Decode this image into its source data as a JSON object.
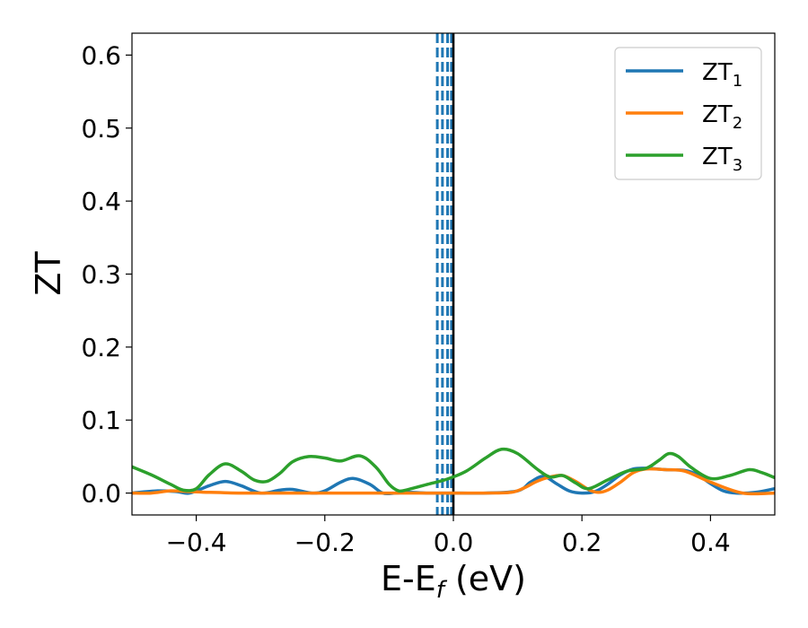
{
  "chart_data": {
    "type": "line",
    "xlabel": "E-E",
    "xlabel_sub": "f",
    "xlabel_unit": " (eV)",
    "ylabel": "ZT",
    "xlim": [
      -0.5,
      0.5
    ],
    "ylim": [
      -0.03,
      0.63
    ],
    "xticks": [
      -0.4,
      -0.2,
      0.0,
      0.2,
      0.4
    ],
    "xtick_labels": [
      "−0.4",
      "−0.2",
      "0.0",
      "0.2",
      "0.4"
    ],
    "yticks": [
      0.0,
      0.1,
      0.2,
      0.3,
      0.4,
      0.5,
      0.6
    ],
    "ytick_labels": [
      "0.0",
      "0.1",
      "0.2",
      "0.3",
      "0.4",
      "0.5",
      "0.6"
    ],
    "grid": false,
    "legend_position": "top-right",
    "vertical_lines": [
      {
        "x": -0.025,
        "style": "dashed",
        "color": "#1f77b4"
      },
      {
        "x": -0.017,
        "style": "dashed",
        "color": "#1f77b4"
      },
      {
        "x": -0.009,
        "style": "dashed",
        "color": "#1f77b4"
      },
      {
        "x": -0.003,
        "style": "dashed",
        "color": "#1f77b4"
      },
      {
        "x": 0.0,
        "style": "solid",
        "color": "#000000"
      }
    ],
    "series": [
      {
        "name": "ZT",
        "name_sub": "1",
        "color": "#1f77b4",
        "x": [
          -0.5,
          -0.46,
          -0.43,
          -0.41,
          -0.38,
          -0.355,
          -0.33,
          -0.3,
          -0.27,
          -0.25,
          -0.22,
          -0.2,
          -0.175,
          -0.155,
          -0.13,
          -0.11,
          -0.09,
          -0.07,
          -0.04,
          -0.02,
          0.0,
          0.05,
          0.1,
          0.12,
          0.14,
          0.16,
          0.18,
          0.2,
          0.22,
          0.24,
          0.26,
          0.28,
          0.3,
          0.33,
          0.36,
          0.38,
          0.4,
          0.42,
          0.44,
          0.47,
          0.5
        ],
        "y": [
          0.0,
          0.003,
          0.002,
          0.0,
          0.01,
          0.016,
          0.01,
          0.0,
          0.004,
          0.005,
          0.0,
          0.003,
          0.015,
          0.02,
          0.012,
          0.0,
          0.0,
          0.001,
          0.0,
          0.0,
          0.0,
          0.0,
          0.003,
          0.015,
          0.023,
          0.013,
          0.003,
          0.0,
          0.002,
          0.012,
          0.025,
          0.033,
          0.034,
          0.032,
          0.031,
          0.025,
          0.013,
          0.003,
          0.0,
          0.001,
          0.006
        ]
      },
      {
        "name": "ZT",
        "name_sub": "2",
        "color": "#ff7f0e",
        "x": [
          -0.5,
          -0.47,
          -0.44,
          -0.41,
          -0.38,
          -0.33,
          -0.28,
          -0.23,
          -0.18,
          -0.13,
          -0.08,
          -0.04,
          -0.02,
          0.0,
          0.05,
          0.09,
          0.11,
          0.13,
          0.15,
          0.17,
          0.19,
          0.21,
          0.225,
          0.24,
          0.26,
          0.28,
          0.3,
          0.33,
          0.36,
          0.4,
          0.45,
          0.5
        ],
        "y": [
          0.0,
          0.0,
          0.003,
          0.002,
          0.001,
          0.0,
          0.0,
          0.0,
          0.0,
          0.0,
          0.0,
          0.0,
          0.0,
          0.0,
          0.0,
          0.001,
          0.007,
          0.016,
          0.022,
          0.024,
          0.016,
          0.005,
          0.001,
          0.004,
          0.015,
          0.028,
          0.033,
          0.032,
          0.03,
          0.015,
          0.0,
          0.0
        ]
      },
      {
        "name": "ZT",
        "name_sub": "3",
        "color": "#2ca02c",
        "x": [
          -0.5,
          -0.47,
          -0.44,
          -0.42,
          -0.4,
          -0.38,
          -0.355,
          -0.33,
          -0.31,
          -0.29,
          -0.27,
          -0.25,
          -0.225,
          -0.2,
          -0.175,
          -0.145,
          -0.12,
          -0.1,
          -0.085,
          -0.07,
          -0.04,
          -0.01,
          0.02,
          0.05,
          0.075,
          0.1,
          0.13,
          0.15,
          0.17,
          0.19,
          0.21,
          0.24,
          0.27,
          0.3,
          0.32,
          0.335,
          0.35,
          0.37,
          0.4,
          0.43,
          0.46,
          0.48,
          0.5
        ],
        "y": [
          0.036,
          0.025,
          0.012,
          0.004,
          0.006,
          0.025,
          0.04,
          0.03,
          0.018,
          0.016,
          0.027,
          0.043,
          0.05,
          0.048,
          0.044,
          0.051,
          0.035,
          0.012,
          0.003,
          0.005,
          0.012,
          0.019,
          0.03,
          0.048,
          0.06,
          0.054,
          0.033,
          0.022,
          0.024,
          0.014,
          0.006,
          0.018,
          0.03,
          0.034,
          0.045,
          0.054,
          0.05,
          0.035,
          0.02,
          0.024,
          0.032,
          0.028,
          0.021
        ]
      }
    ]
  }
}
